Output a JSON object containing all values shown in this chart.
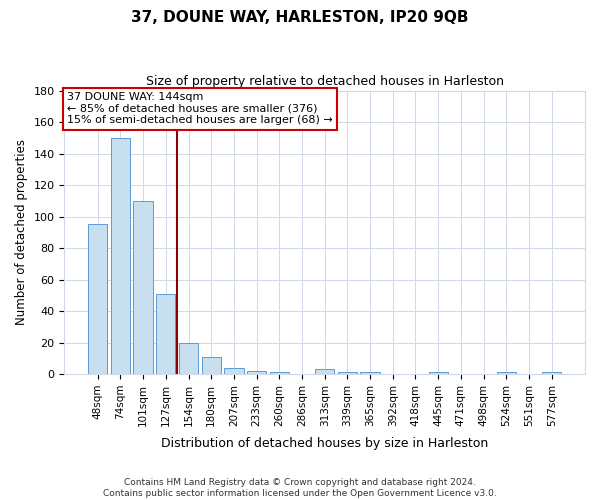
{
  "title": "37, DOUNE WAY, HARLESTON, IP20 9QB",
  "subtitle": "Size of property relative to detached houses in Harleston",
  "xlabel": "Distribution of detached houses by size in Harleston",
  "ylabel": "Number of detached properties",
  "footer_line1": "Contains HM Land Registry data © Crown copyright and database right 2024.",
  "footer_line2": "Contains public sector information licensed under the Open Government Licence v3.0.",
  "bar_labels": [
    "48sqm",
    "74sqm",
    "101sqm",
    "127sqm",
    "154sqm",
    "180sqm",
    "207sqm",
    "233sqm",
    "260sqm",
    "286sqm",
    "313sqm",
    "339sqm",
    "365sqm",
    "392sqm",
    "418sqm",
    "445sqm",
    "471sqm",
    "498sqm",
    "524sqm",
    "551sqm",
    "577sqm"
  ],
  "bar_values": [
    95,
    150,
    110,
    51,
    20,
    11,
    4,
    2,
    1,
    0,
    3,
    1,
    1,
    0,
    0,
    1,
    0,
    0,
    1,
    0,
    1
  ],
  "bar_color": "#c8dff0",
  "bar_edge_color": "#5b9bd5",
  "vline_color": "#8b0000",
  "annotation_title": "37 DOUNE WAY: 144sqm",
  "annotation_line2": "← 85% of detached houses are smaller (376)",
  "annotation_line3": "15% of semi-detached houses are larger (68) →",
  "annotation_box_edgecolor": "#cc0000",
  "ylim": [
    0,
    180
  ],
  "yticks": [
    0,
    20,
    40,
    60,
    80,
    100,
    120,
    140,
    160,
    180
  ],
  "background_color": "#ffffff",
  "grid_color": "#d0d8e8",
  "title_fontsize": 11,
  "subtitle_fontsize": 9
}
